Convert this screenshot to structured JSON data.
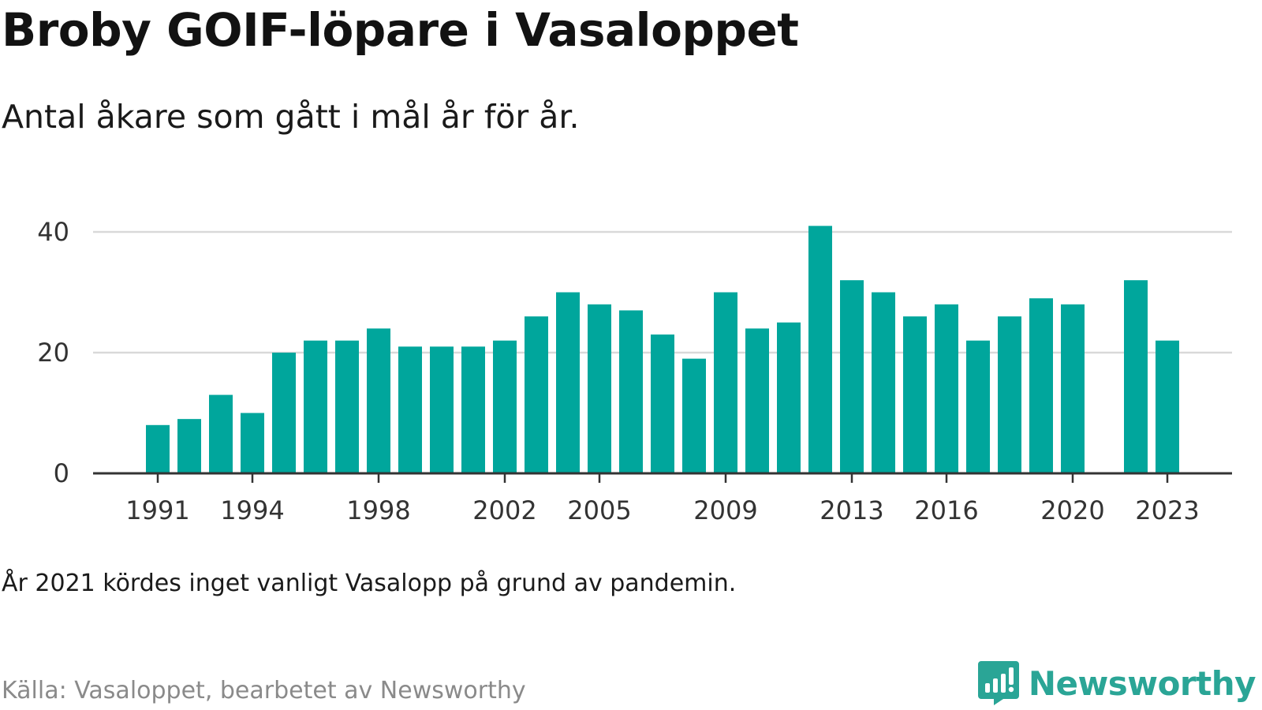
{
  "header": {
    "title": "Broby GOIF-löpare i Vasaloppet",
    "subtitle": "Antal åkare som gått i mål år för år."
  },
  "footer": {
    "note": "År 2021 kördes inget vanligt Vasalopp på grund av pandemin.",
    "source": "Källa: Vasaloppet, bearbetet av Newsworthy",
    "brand": "Newsworthy",
    "brand_icon": "newsworthy-logo-icon"
  },
  "colors": {
    "bar": "#00a69c",
    "gridline": "#d9d9d9",
    "axis": "#333333",
    "brand": "#2aa596"
  },
  "chart_data": {
    "type": "bar",
    "title": "Broby GOIF-löpare i Vasaloppet",
    "subtitle": "Antal åkare som gått i mål år för år.",
    "xlabel": "",
    "ylabel": "",
    "ylim": [
      0,
      40
    ],
    "yticks": [
      0,
      20,
      40
    ],
    "xticks": [
      1991,
      1994,
      1998,
      2002,
      2005,
      2009,
      2013,
      2016,
      2020,
      2023
    ],
    "grid": true,
    "x": [
      1991,
      1992,
      1993,
      1994,
      1995,
      1996,
      1997,
      1998,
      1999,
      2000,
      2001,
      2002,
      2003,
      2004,
      2005,
      2006,
      2007,
      2008,
      2009,
      2010,
      2011,
      2012,
      2013,
      2014,
      2015,
      2016,
      2017,
      2018,
      2019,
      2020,
      2021,
      2022,
      2023
    ],
    "values": [
      8,
      9,
      13,
      10,
      20,
      22,
      22,
      24,
      21,
      21,
      21,
      22,
      26,
      30,
      28,
      27,
      23,
      19,
      30,
      24,
      25,
      41,
      32,
      30,
      26,
      28,
      22,
      26,
      29,
      28,
      null,
      32,
      22
    ]
  }
}
